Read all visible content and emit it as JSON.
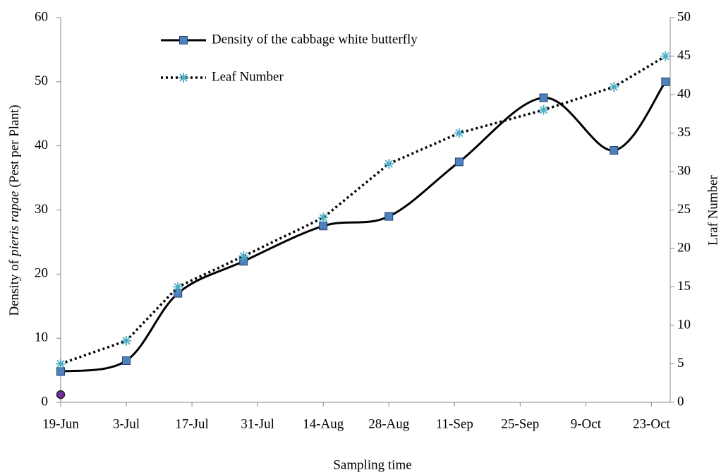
{
  "chart_data": {
    "type": "line",
    "x_label": "Sampling time",
    "y_label": [
      "Density of",
      "pieris rapae",
      "(Pest per Plant)"
    ],
    "y2_label": "Lraf Number",
    "x": [
      0,
      14,
      25,
      39,
      56,
      70,
      85,
      103,
      118,
      129
    ],
    "xlim": [
      0,
      130
    ],
    "xticks": [
      {
        "value": 0,
        "label": "19-Jun"
      },
      {
        "value": 14,
        "label": "3-Jul"
      },
      {
        "value": 28,
        "label": "17-Jul"
      },
      {
        "value": 42,
        "label": "31-Jul"
      },
      {
        "value": 56,
        "label": "14-Aug"
      },
      {
        "value": 70,
        "label": "28-Aug"
      },
      {
        "value": 84,
        "label": "11-Sep"
      },
      {
        "value": 98,
        "label": "25-Sep"
      },
      {
        "value": 112,
        "label": "9-Oct"
      },
      {
        "value": 126,
        "label": "23-Oct"
      }
    ],
    "ylim": [
      0,
      60
    ],
    "yticks": [
      0,
      10,
      20,
      30,
      40,
      50,
      60
    ],
    "y2lim": [
      0,
      50
    ],
    "y2ticks": [
      0,
      5,
      10,
      15,
      20,
      25,
      30,
      35,
      40,
      45,
      50
    ],
    "legend": "top-left",
    "series": [
      {
        "name": "Density of the cabbage white butterfly",
        "color": "#000000",
        "marker_color": "#4f81bd",
        "marker": "square",
        "style": "smooth",
        "values": [
          4.8,
          6.5,
          17,
          22,
          27.5,
          29,
          37.5,
          47.5,
          39.3,
          50
        ]
      },
      {
        "name": "Leaf Number",
        "color": "#000000",
        "marker_color": "#4bacc6",
        "marker": "asterisk",
        "style": "dotted",
        "axis": "y2",
        "values": [
          5,
          8,
          15,
          19,
          24,
          31,
          35,
          38,
          41,
          45
        ]
      },
      {
        "color": "#7030a0",
        "marker": "circle",
        "values": [
          1.2,
          null,
          null,
          null,
          null,
          null,
          null,
          null,
          null,
          null
        ]
      }
    ]
  }
}
